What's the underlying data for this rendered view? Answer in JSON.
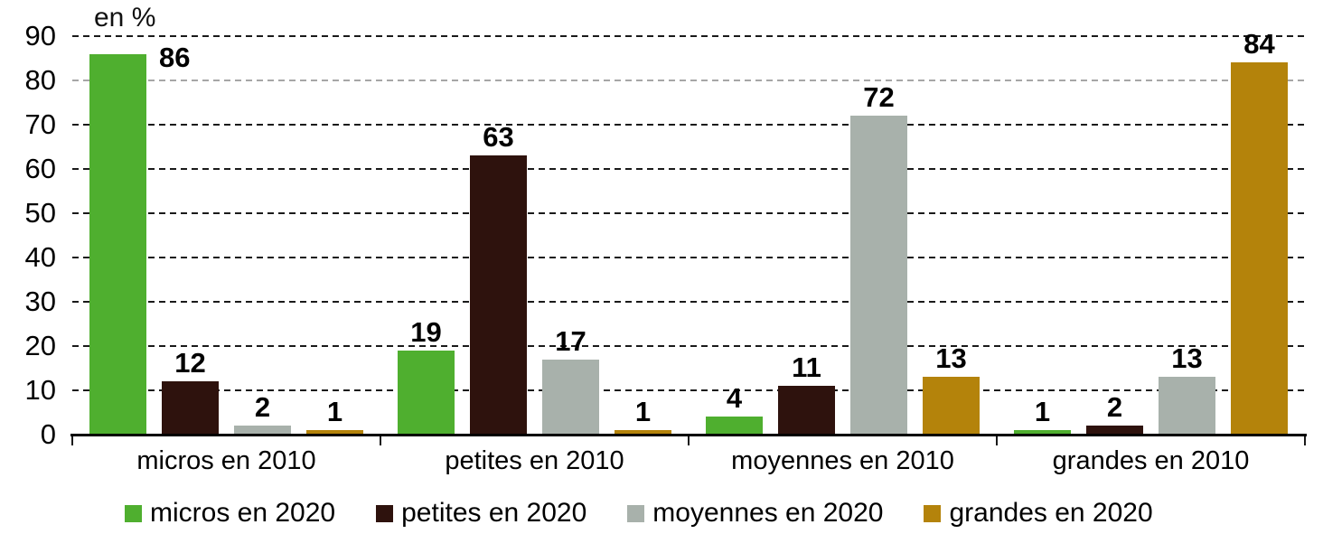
{
  "chart_data": {
    "type": "bar",
    "title": "",
    "unit_label": "en %",
    "categories": [
      "micros en 2010",
      "petites en 2010",
      "moyennes en 2010",
      "grandes en 2010"
    ],
    "series": [
      {
        "name": "micros en 2020",
        "color": "#4FAF2F",
        "values": [
          86,
          19,
          4,
          1
        ]
      },
      {
        "name": "petites en 2020",
        "color": "#2E120D",
        "values": [
          12,
          63,
          11,
          2
        ]
      },
      {
        "name": "moyennes en 2020",
        "color": "#A8B1AB",
        "values": [
          2,
          17,
          72,
          13
        ]
      },
      {
        "name": "grandes en 2020",
        "color": "#B4830B",
        "values": [
          1,
          1,
          13,
          84
        ]
      }
    ],
    "ylim": [
      0,
      90
    ],
    "y_ticks": [
      0,
      10,
      20,
      30,
      40,
      50,
      60,
      70,
      80,
      90
    ],
    "grid": "horizontal-dashed",
    "gridline_color_default": "#1a1a1a",
    "gridline_color_at_80": "#a6a6a6",
    "legend_position": "bottom",
    "data_labels": true,
    "label_offset_overrides": [
      {
        "group": 0,
        "series": 0,
        "dx": 66,
        "dy": 24
      }
    ]
  }
}
